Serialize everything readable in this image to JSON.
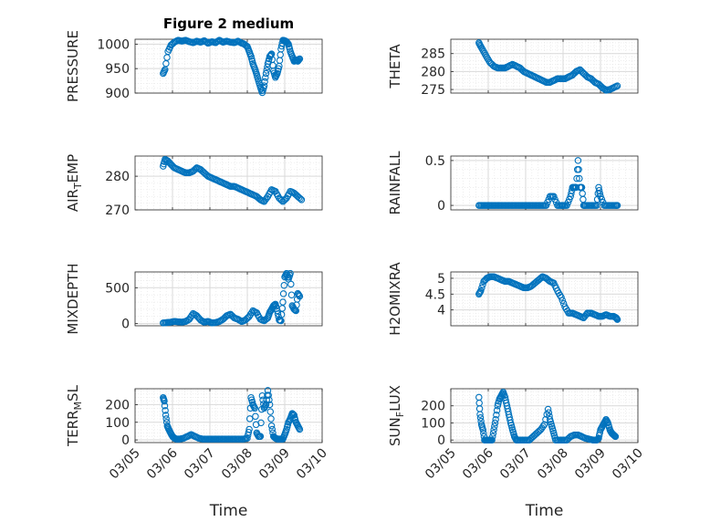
{
  "figure": {
    "title": "Figure 2 medium"
  },
  "colors": {
    "marker": "#0072BD",
    "axes": "#262626",
    "grid": "#d9d9d9"
  },
  "chart_data": [
    {
      "id": "pressure",
      "type": "scatter",
      "column": 0,
      "title": "Figure 2 medium",
      "ylabel": "PRESSURE",
      "ylim": [
        900,
        1010
      ],
      "yticks": [
        900,
        950,
        1000
      ],
      "ytick_labels": [
        "900",
        "950",
        "1000"
      ],
      "xlim": [
        0,
        5
      ],
      "xticks": [
        1,
        2,
        3,
        4
      ],
      "xlabel": "",
      "grid": true,
      "x": [
        0.75,
        0.8,
        0.88,
        0.96,
        1.05,
        1.15,
        1.25,
        1.35,
        1.45,
        1.55,
        1.65,
        1.75,
        1.85,
        1.95,
        2.05,
        2.15,
        2.25,
        2.35,
        2.45,
        2.55,
        2.65,
        2.75,
        2.85,
        2.92,
        3.0,
        3.05,
        3.1,
        3.15,
        3.2,
        3.25,
        3.3,
        3.35,
        3.4,
        3.45,
        3.5,
        3.55,
        3.6,
        3.65,
        3.7,
        3.75,
        3.8,
        3.85,
        3.9,
        3.95,
        4.0,
        4.05,
        4.1,
        4.15,
        4.2,
        4.25,
        4.3,
        4.35,
        4.4
      ],
      "y": [
        940,
        948,
        985,
        998,
        1004,
        1008,
        1006,
        1008,
        1005,
        1003,
        1006,
        1004,
        1007,
        1002,
        1005,
        1003,
        1008,
        1004,
        1006,
        1004,
        1003,
        1006,
        1002,
        1000,
        995,
        985,
        975,
        960,
        950,
        938,
        925,
        912,
        901,
        915,
        940,
        960,
        975,
        980,
        945,
        932,
        940,
        955,
        990,
        1008,
        1007,
        1005,
        1000,
        985,
        975,
        965,
        968,
        965,
        970
      ]
    },
    {
      "id": "theta",
      "type": "scatter",
      "column": 1,
      "ylabel": "THETA",
      "ylim": [
        274,
        289
      ],
      "yticks": [
        275,
        280,
        285
      ],
      "ytick_labels": [
        "275",
        "280",
        "285"
      ],
      "xlim": [
        0,
        5
      ],
      "xticks": [
        1,
        2,
        3,
        4
      ],
      "xlabel": "",
      "grid": true,
      "x": [
        0.75,
        0.8,
        0.88,
        0.96,
        1.05,
        1.15,
        1.25,
        1.35,
        1.45,
        1.55,
        1.65,
        1.75,
        1.85,
        1.95,
        2.05,
        2.15,
        2.25,
        2.35,
        2.45,
        2.55,
        2.65,
        2.75,
        2.85,
        2.95,
        3.05,
        3.15,
        3.25,
        3.35,
        3.45,
        3.55,
        3.65,
        3.75,
        3.85,
        3.95,
        4.05,
        4.15,
        4.25,
        4.35,
        4.45
      ],
      "y": [
        288,
        287,
        285.5,
        284,
        282.5,
        281.5,
        281,
        281,
        281,
        281.5,
        282,
        281.5,
        281,
        280,
        279.5,
        279,
        278.5,
        278,
        277.5,
        277,
        277,
        277.5,
        278,
        278,
        278,
        278.5,
        279,
        280,
        280.5,
        279.5,
        278.5,
        278,
        277,
        276.5,
        275.5,
        274.8,
        275,
        275.5,
        276
      ]
    },
    {
      "id": "airtemp",
      "type": "scatter",
      "column": 0,
      "ylabel": "AIR_TEMP",
      "ylabel_parts": [
        "AIR",
        "T",
        "EMP"
      ],
      "ylim": [
        270,
        286
      ],
      "yticks": [
        270,
        280
      ],
      "ytick_labels": [
        "270",
        "280"
      ],
      "xlim": [
        0,
        5
      ],
      "xticks": [
        1,
        2,
        3,
        4
      ],
      "xlabel": "",
      "grid": true,
      "x": [
        0.75,
        0.8,
        0.88,
        0.96,
        1.05,
        1.15,
        1.25,
        1.35,
        1.45,
        1.55,
        1.65,
        1.75,
        1.85,
        1.95,
        2.05,
        2.15,
        2.25,
        2.35,
        2.45,
        2.55,
        2.65,
        2.75,
        2.85,
        2.95,
        3.05,
        3.15,
        3.25,
        3.35,
        3.45,
        3.55,
        3.65,
        3.75,
        3.85,
        3.95,
        4.05,
        4.15,
        4.25,
        4.35,
        4.45
      ],
      "y": [
        283,
        285,
        284.5,
        283.5,
        282.5,
        282,
        281.5,
        281,
        281,
        281.5,
        282.5,
        282,
        281,
        280,
        279.5,
        279,
        278.5,
        278,
        277.5,
        277,
        277,
        276.5,
        276,
        275.5,
        275,
        274.5,
        274,
        273,
        272.5,
        274,
        276,
        275.5,
        273.5,
        272.5,
        273.5,
        275.5,
        275,
        274,
        273
      ]
    },
    {
      "id": "rainfall",
      "type": "scatter",
      "column": 1,
      "ylabel": "RAINFALL",
      "ylim": [
        -0.05,
        0.55
      ],
      "yticks": [
        0,
        0.5
      ],
      "ytick_labels": [
        "0",
        "0.5"
      ],
      "xlim": [
        0,
        5
      ],
      "xticks": [
        1,
        2,
        3,
        4
      ],
      "xlabel": "",
      "grid": true,
      "x": [
        0.75,
        0.85,
        0.95,
        1.05,
        1.15,
        1.25,
        1.35,
        1.45,
        1.55,
        1.65,
        1.75,
        1.85,
        1.95,
        2.05,
        2.15,
        2.25,
        2.35,
        2.45,
        2.55,
        2.65,
        2.75,
        2.85,
        2.95,
        3.0,
        3.1,
        3.2,
        3.25,
        3.3,
        3.35,
        3.4,
        3.45,
        3.5,
        3.55,
        3.6,
        3.7,
        3.8,
        3.9,
        3.95,
        4.0,
        4.1,
        4.2,
        4.3,
        4.4,
        4.45
      ],
      "y": [
        0,
        0,
        0,
        0,
        0,
        0,
        0,
        0,
        0,
        0,
        0,
        0,
        0,
        0,
        0,
        0,
        0,
        0,
        0,
        0.1,
        0.1,
        0,
        0,
        0,
        0,
        0.1,
        0.2,
        0.2,
        0.2,
        0.5,
        0.2,
        0.2,
        0,
        0,
        0,
        0,
        0,
        0.2,
        0.1,
        0,
        0,
        0,
        0,
        0
      ]
    },
    {
      "id": "mixdepth",
      "type": "scatter",
      "column": 0,
      "ylabel": "MIXDEPTH",
      "ylim": [
        -30,
        720
      ],
      "yticks": [
        0,
        500
      ],
      "ytick_labels": [
        "0",
        "500"
      ],
      "xlim": [
        0,
        5
      ],
      "xticks": [
        1,
        2,
        3,
        4
      ],
      "xlabel": "",
      "grid": true,
      "x": [
        0.75,
        0.85,
        0.95,
        1.05,
        1.15,
        1.25,
        1.35,
        1.45,
        1.55,
        1.65,
        1.75,
        1.85,
        1.95,
        2.05,
        2.15,
        2.25,
        2.35,
        2.45,
        2.55,
        2.65,
        2.75,
        2.85,
        2.95,
        3.05,
        3.15,
        3.25,
        3.35,
        3.45,
        3.55,
        3.6,
        3.65,
        3.7,
        3.75,
        3.8,
        3.85,
        3.9,
        3.95,
        4.0,
        4.05,
        4.1,
        4.15,
        4.2,
        4.25,
        4.3,
        4.35,
        4.4
      ],
      "y": [
        10,
        15,
        20,
        30,
        25,
        20,
        30,
        60,
        140,
        110,
        50,
        20,
        30,
        10,
        15,
        30,
        60,
        110,
        130,
        80,
        60,
        30,
        50,
        100,
        180,
        150,
        60,
        40,
        80,
        160,
        200,
        250,
        270,
        180,
        50,
        40,
        300,
        650,
        700,
        620,
        700,
        250,
        200,
        180,
        420,
        380
      ]
    },
    {
      "id": "h2omixra",
      "type": "scatter",
      "column": 1,
      "ylabel": "H2OMIXRA",
      "ylim": [
        3.5,
        5.2
      ],
      "yticks": [
        4,
        4.5,
        5
      ],
      "ytick_labels": [
        "4",
        "4.5",
        "5"
      ],
      "xlim": [
        0,
        5
      ],
      "xticks": [
        1,
        2,
        3,
        4
      ],
      "xlabel": "",
      "grid": true,
      "x": [
        0.75,
        0.8,
        0.88,
        0.96,
        1.05,
        1.15,
        1.25,
        1.35,
        1.45,
        1.55,
        1.65,
        1.75,
        1.85,
        1.95,
        2.05,
        2.15,
        2.25,
        2.35,
        2.45,
        2.55,
        2.65,
        2.75,
        2.85,
        2.95,
        3.05,
        3.15,
        3.25,
        3.35,
        3.45,
        3.55,
        3.65,
        3.75,
        3.85,
        3.95,
        4.05,
        4.15,
        4.25,
        4.35,
        4.42,
        4.45
      ],
      "y": [
        4.5,
        4.6,
        4.9,
        5.0,
        5.05,
        5.05,
        5.0,
        4.95,
        4.9,
        4.9,
        4.85,
        4.8,
        4.75,
        4.7,
        4.7,
        4.75,
        4.85,
        4.95,
        5.05,
        5.0,
        4.9,
        4.85,
        4.6,
        4.4,
        4.1,
        3.9,
        3.9,
        3.85,
        3.8,
        3.75,
        3.9,
        3.9,
        3.85,
        3.8,
        3.8,
        3.85,
        3.8,
        3.8,
        3.75,
        3.7
      ]
    },
    {
      "id": "terrmsl",
      "type": "scatter",
      "column": 0,
      "ylabel": "TERR_MSL",
      "ylabel_parts": [
        "TERR",
        "M",
        "SL"
      ],
      "ylim": [
        -15,
        290
      ],
      "yticks": [
        0,
        100,
        200
      ],
      "ytick_labels": [
        "0",
        "100",
        "200"
      ],
      "xlim": [
        0,
        5
      ],
      "xticks": [
        1,
        2,
        3,
        4
      ],
      "xlabel": "Time",
      "xtick_labels": [
        "03/05",
        "03/06",
        "03/07",
        "03/08",
        "03/09",
        "03/10"
      ],
      "xtick_positions": [
        0,
        1,
        2,
        3,
        4,
        5
      ],
      "grid": true,
      "x": [
        0.75,
        0.78,
        0.82,
        0.86,
        0.9,
        0.95,
        1.0,
        1.05,
        1.1,
        1.15,
        1.2,
        1.3,
        1.4,
        1.5,
        1.6,
        1.7,
        1.8,
        1.9,
        2.0,
        2.1,
        2.2,
        2.3,
        2.4,
        2.5,
        2.6,
        2.7,
        2.8,
        2.9,
        3.0,
        3.05,
        3.1,
        3.15,
        3.2,
        3.25,
        3.3,
        3.35,
        3.4,
        3.45,
        3.5,
        3.55,
        3.6,
        3.65,
        3.7,
        3.75,
        3.8,
        3.85,
        3.9,
        3.95,
        4.0,
        4.05,
        4.1,
        4.15,
        4.2,
        4.25,
        4.3,
        4.35,
        4.4
      ],
      "y": [
        240,
        220,
        140,
        80,
        60,
        40,
        20,
        10,
        5,
        5,
        5,
        10,
        20,
        30,
        20,
        10,
        5,
        5,
        5,
        5,
        5,
        5,
        5,
        5,
        5,
        5,
        5,
        5,
        10,
        60,
        240,
        200,
        180,
        40,
        20,
        20,
        250,
        180,
        200,
        280,
        200,
        80,
        20,
        10,
        5,
        5,
        5,
        5,
        30,
        60,
        100,
        120,
        150,
        140,
        100,
        80,
        60
      ]
    },
    {
      "id": "sunflux",
      "type": "scatter",
      "column": 1,
      "ylabel": "SUN_FLUX",
      "ylabel_parts": [
        "SUN",
        "F",
        "LUX"
      ],
      "ylim": [
        -15,
        300
      ],
      "yticks": [
        0,
        100,
        200
      ],
      "ytick_labels": [
        "0",
        "100",
        "200"
      ],
      "xlim": [
        0,
        5
      ],
      "xticks": [
        1,
        2,
        3,
        4
      ],
      "xlabel": "Time",
      "xtick_labels": [
        "03/05",
        "03/06",
        "03/07",
        "03/08",
        "03/09",
        "03/10"
      ],
      "xtick_positions": [
        0,
        1,
        2,
        3,
        4,
        5
      ],
      "grid": true,
      "x": [
        0.75,
        0.78,
        0.82,
        0.86,
        0.9,
        0.95,
        1.0,
        1.05,
        1.1,
        1.15,
        1.2,
        1.25,
        1.3,
        1.35,
        1.4,
        1.45,
        1.5,
        1.55,
        1.6,
        1.65,
        1.7,
        1.75,
        1.8,
        1.9,
        2.0,
        2.1,
        2.2,
        2.3,
        2.4,
        2.5,
        2.6,
        2.65,
        2.7,
        2.75,
        2.8,
        2.9,
        3.0,
        3.1,
        3.2,
        3.3,
        3.4,
        3.5,
        3.6,
        3.7,
        3.8,
        3.85,
        3.9,
        3.95,
        4.0,
        4.05,
        4.1,
        4.15,
        4.2,
        4.25,
        4.3,
        4.35,
        4.4
      ],
      "y": [
        250,
        150,
        90,
        60,
        0,
        0,
        0,
        0,
        0,
        60,
        120,
        200,
        240,
        260,
        280,
        250,
        200,
        150,
        100,
        60,
        20,
        0,
        0,
        0,
        0,
        0,
        20,
        40,
        60,
        90,
        180,
        120,
        80,
        40,
        0,
        0,
        0,
        0,
        20,
        30,
        30,
        20,
        10,
        5,
        0,
        0,
        0,
        10,
        60,
        80,
        100,
        120,
        100,
        60,
        40,
        30,
        20
      ]
    }
  ]
}
